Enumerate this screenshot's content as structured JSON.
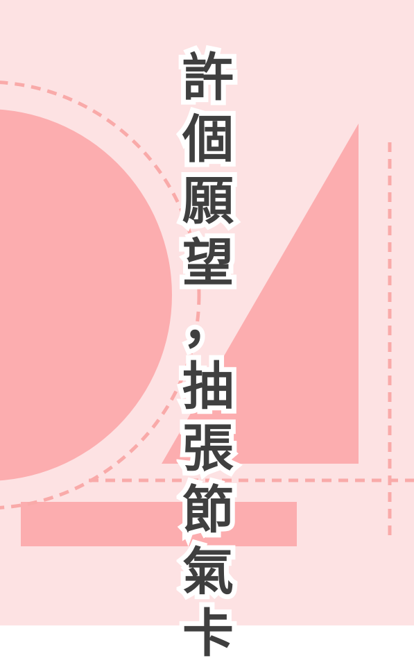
{
  "title": {
    "chars": [
      "許",
      "個",
      "願",
      "望",
      "，",
      "抽",
      "張",
      "節",
      "氣",
      "卡"
    ]
  },
  "colors": {
    "background": "#fde2e3",
    "shape_fill": "#fcadaf",
    "dash_line": "#f9aaa9",
    "text": "#3f3f3f",
    "text_outline": "#ffffff"
  }
}
